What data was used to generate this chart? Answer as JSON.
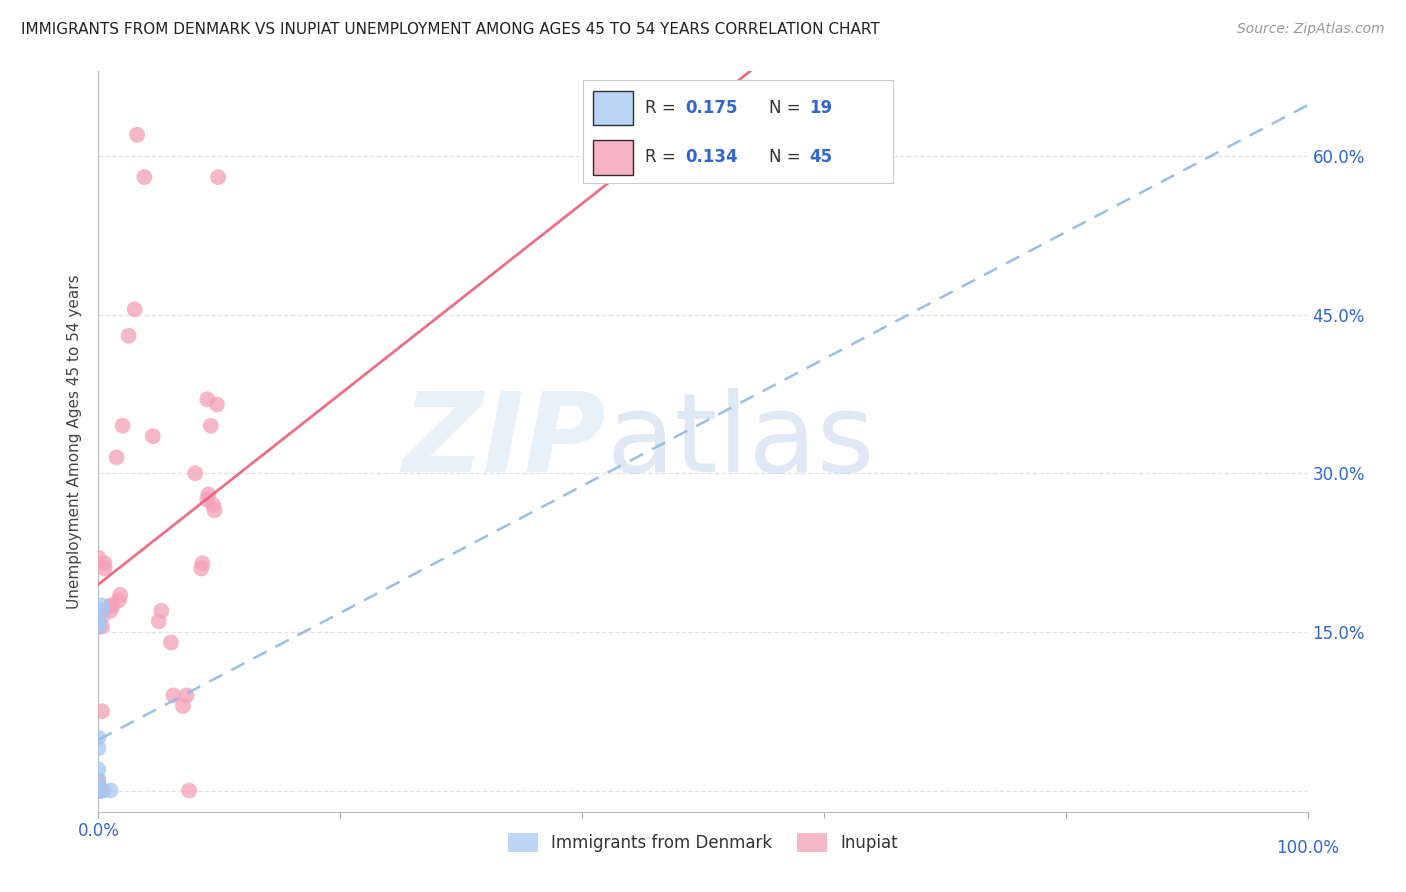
{
  "title": "IMMIGRANTS FROM DENMARK VS INUPIAT UNEMPLOYMENT AMONG AGES 45 TO 54 YEARS CORRELATION CHART",
  "source": "Source: ZipAtlas.com",
  "ylabel": "Unemployment Among Ages 45 to 54 years",
  "xlim": [
    0,
    1.0
  ],
  "ylim": [
    -0.02,
    0.68
  ],
  "yticks": [
    0.0,
    0.15,
    0.3,
    0.45,
    0.6
  ],
  "yticklabels_right": [
    "",
    "15.0%",
    "30.0%",
    "45.0%",
    "60.0%"
  ],
  "blue_color": "#a8c8f0",
  "pink_color": "#f4a0b8",
  "blue_scatter": [
    [
      0.0,
      0.0
    ],
    [
      0.0,
      0.0
    ],
    [
      0.0,
      0.0
    ],
    [
      0.0,
      0.0
    ],
    [
      0.0,
      0.0
    ],
    [
      0.0,
      0.0
    ],
    [
      0.0,
      0.01
    ],
    [
      0.0,
      0.02
    ],
    [
      0.0,
      0.04
    ],
    [
      0.0,
      0.05
    ],
    [
      0.0,
      0.155
    ],
    [
      0.0,
      0.158
    ],
    [
      0.0,
      0.16
    ],
    [
      0.002,
      0.0
    ],
    [
      0.002,
      0.0
    ],
    [
      0.003,
      0.17
    ],
    [
      0.003,
      0.175
    ],
    [
      0.004,
      0.0
    ],
    [
      0.01,
      0.0
    ]
  ],
  "pink_scatter": [
    [
      0.0,
      0.0
    ],
    [
      0.0,
      0.0
    ],
    [
      0.0,
      0.0
    ],
    [
      0.0,
      0.005
    ],
    [
      0.0,
      0.01
    ],
    [
      0.0,
      0.155
    ],
    [
      0.0,
      0.165
    ],
    [
      0.0,
      0.22
    ],
    [
      0.002,
      0.0
    ],
    [
      0.002,
      0.0
    ],
    [
      0.003,
      0.155
    ],
    [
      0.003,
      0.165
    ],
    [
      0.003,
      0.075
    ],
    [
      0.005,
      0.21
    ],
    [
      0.005,
      0.215
    ],
    [
      0.01,
      0.17
    ],
    [
      0.01,
      0.175
    ],
    [
      0.012,
      0.175
    ],
    [
      0.015,
      0.315
    ],
    [
      0.017,
      0.18
    ],
    [
      0.018,
      0.185
    ],
    [
      0.02,
      0.345
    ],
    [
      0.025,
      0.43
    ],
    [
      0.03,
      0.455
    ],
    [
      0.032,
      0.62
    ],
    [
      0.038,
      0.58
    ],
    [
      0.045,
      0.335
    ],
    [
      0.05,
      0.16
    ],
    [
      0.052,
      0.17
    ],
    [
      0.06,
      0.14
    ],
    [
      0.062,
      0.09
    ],
    [
      0.07,
      0.08
    ],
    [
      0.073,
      0.09
    ],
    [
      0.075,
      0.0
    ],
    [
      0.08,
      0.3
    ],
    [
      0.085,
      0.21
    ],
    [
      0.086,
      0.215
    ],
    [
      0.09,
      0.37
    ],
    [
      0.09,
      0.275
    ],
    [
      0.091,
      0.28
    ],
    [
      0.093,
      0.345
    ],
    [
      0.095,
      0.27
    ],
    [
      0.096,
      0.265
    ],
    [
      0.098,
      0.365
    ],
    [
      0.099,
      0.58
    ]
  ],
  "blue_line_intercept": 0.048,
  "blue_line_slope": 0.6,
  "pink_line_intercept": 0.195,
  "pink_line_slope": 0.9,
  "watermark_zip": "ZIP",
  "watermark_atlas": "atlas",
  "bg_color": "#ffffff"
}
